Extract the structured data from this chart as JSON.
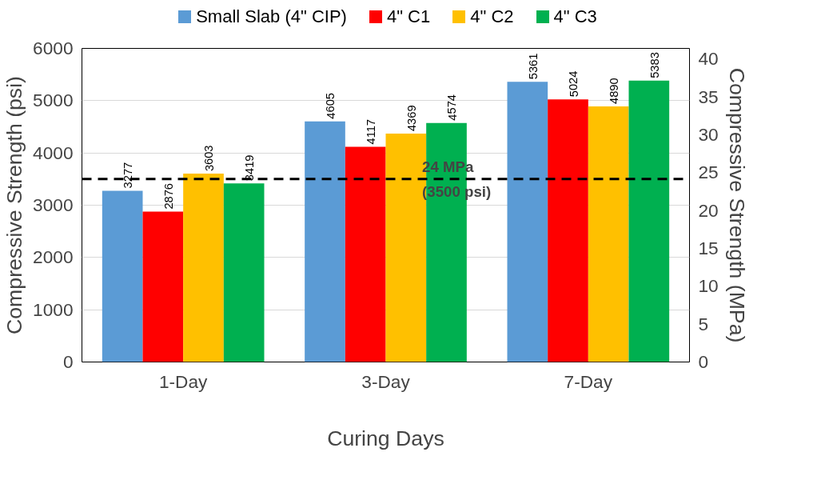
{
  "chart_data": {
    "type": "bar",
    "xlabel": "Curing Days",
    "ylabel": "Compressive Strength (psi)",
    "y2label": "Compressive Strength (MPa)",
    "categories": [
      "1-Day",
      "3-Day",
      "7-Day"
    ],
    "series": [
      {
        "name": "Small Slab (4\" CIP)",
        "color": "#5b9bd5",
        "values": [
          3277,
          4605,
          5361
        ]
      },
      {
        "name": "4\" C1",
        "color": "#ff0000",
        "values": [
          2876,
          4117,
          5024
        ]
      },
      {
        "name": "4\" C2",
        "color": "#ffc000",
        "values": [
          3603,
          4369,
          4890
        ]
      },
      {
        "name": "4\" C3",
        "color": "#00b050",
        "values": [
          3419,
          4574,
          5383
        ]
      }
    ],
    "ylim": [
      0,
      6000
    ],
    "yticks": [
      0,
      1000,
      2000,
      3000,
      4000,
      5000,
      6000
    ],
    "y2lim": [
      0,
      41.4
    ],
    "y2ticks": [
      0,
      5,
      10,
      15,
      20,
      25,
      30,
      35,
      40
    ],
    "ref_lines": [
      {
        "axis": "y",
        "value": 3500,
        "label": "24 MPa\n(3500 psi)",
        "color": "#000000",
        "line_style": "dashed"
      }
    ],
    "data_labels": true,
    "grid": "y",
    "legend": "top"
  }
}
